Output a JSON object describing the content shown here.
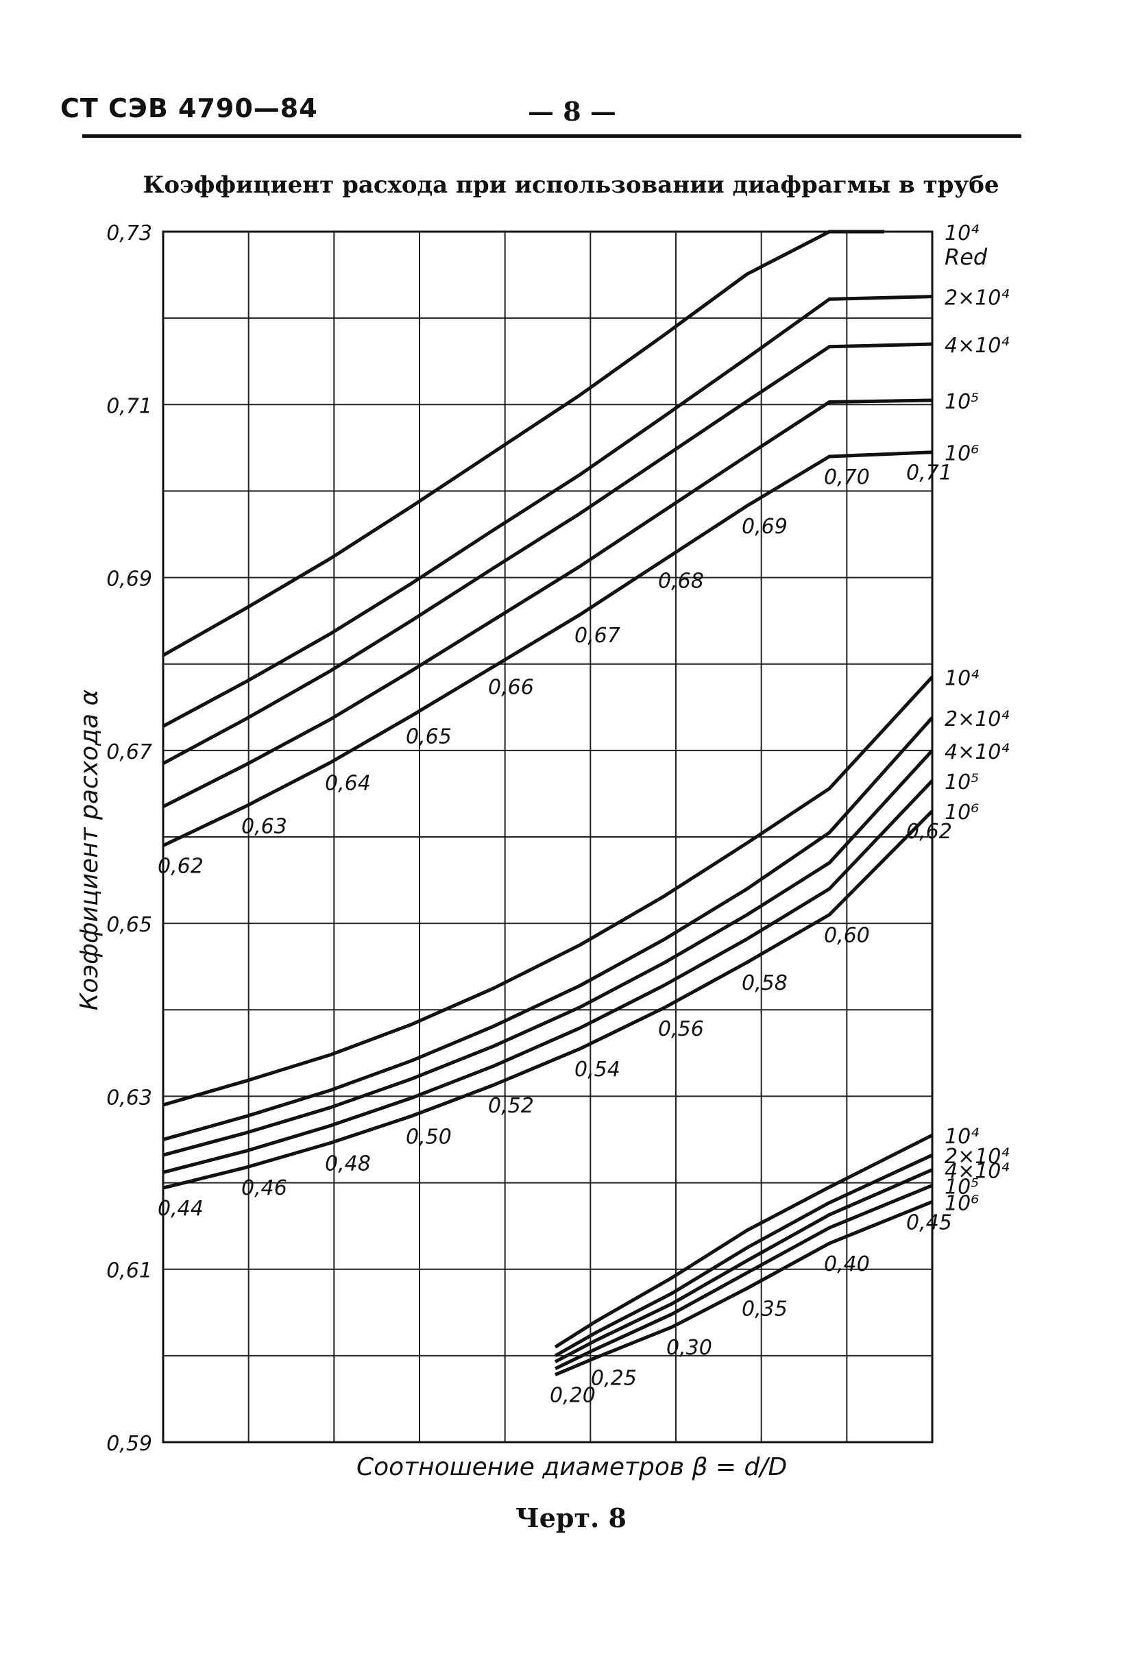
{
  "header": {
    "doc_code": "СТ СЭВ 4790—84",
    "page_number": "— 8 —"
  },
  "title": "Коэффициент расхода при использовании диафрагмы в трубе",
  "caption": "Черт. 8",
  "chart_data": {
    "type": "line",
    "title": "Коэффициент расхода при использовании диафрагмы в трубе",
    "xlabel": "Соотношение диаметров β = d/D",
    "ylabel": "Коэффициент расхода α",
    "legend_title": "Red",
    "y_tick_labels": [
      "0,73",
      "0,71",
      "0,69",
      "0,67",
      "0,65",
      "0,63",
      "0,61",
      "0,59"
    ],
    "ylim": [
      0.59,
      0.73
    ],
    "grid": true,
    "curve_endpoint_labels": [
      "10⁴",
      "2×10⁴",
      "4×10⁴",
      "10⁵",
      "10⁶"
    ],
    "panels": [
      {
        "beta_labels": [
          "0,62",
          "0,63",
          "0,64",
          "0,65",
          "0,66",
          "0,67",
          "0,68",
          "0,69",
          "0,70",
          "0,71"
        ],
        "series": [
          {
            "name": "10⁴",
            "values": [
              0.681,
              0.6865,
              0.6922,
              0.6982,
              0.7045,
              0.7111,
              0.718,
              0.7251,
              0.73,
              0.73
            ]
          },
          {
            "name": "2×10⁴",
            "values": [
              0.6728,
              0.678,
              0.6835,
              0.6893,
              0.6955,
              0.7019,
              0.7086,
              0.7154,
              0.7222,
              0.7225
            ]
          },
          {
            "name": "4×10⁴",
            "values": [
              0.6685,
              0.6737,
              0.6792,
              0.685,
              0.6911,
              0.6974,
              0.7039,
              0.7104,
              0.7167,
              0.717
            ]
          },
          {
            "name": "10⁵",
            "values": [
              0.6635,
              0.6684,
              0.6736,
              0.6792,
              0.6851,
              0.6913,
              0.6977,
              0.7041,
              0.7103,
              0.7105
            ]
          },
          {
            "name": "10⁶",
            "values": [
              0.659,
              0.6636,
              0.6686,
              0.674,
              0.6797,
              0.6857,
              0.692,
              0.6983,
              0.704,
              0.7045
            ]
          }
        ]
      },
      {
        "beta_labels": [
          "0,44",
          "0,46",
          "0,48",
          "0,50",
          "0,52",
          "0,54",
          "0,56",
          "0,58",
          "0,60",
          "0,62"
        ],
        "series": [
          {
            "name": "10⁴",
            "values": [
              0.629,
              0.6318,
              0.6348,
              0.6383,
              0.6425,
              0.6475,
              0.6531,
              0.6593,
              0.6656,
              0.6785
            ]
          },
          {
            "name": "2×10⁴",
            "values": [
              0.625,
              0.6277,
              0.6307,
              0.6341,
              0.6381,
              0.6428,
              0.6481,
              0.654,
              0.6605,
              0.6738
            ]
          },
          {
            "name": "4×10⁴",
            "values": [
              0.6232,
              0.6258,
              0.6287,
              0.632,
              0.6358,
              0.6403,
              0.6454,
              0.651,
              0.657,
              0.67
            ]
          },
          {
            "name": "10⁵",
            "values": [
              0.6212,
              0.6237,
              0.6266,
              0.6298,
              0.6335,
              0.6379,
              0.6428,
              0.6482,
              0.654,
              0.6665
            ]
          },
          {
            "name": "10⁶",
            "values": [
              0.6194,
              0.6218,
              0.6246,
              0.6277,
              0.6313,
              0.6355,
              0.6402,
              0.6455,
              0.651,
              0.663
            ]
          }
        ]
      },
      {
        "beta_labels": [
          "0,20",
          "0,25",
          "0,30",
          "0,35",
          "0,40",
          "0,45"
        ],
        "series": [
          {
            "name": "10⁴",
            "values": [
              0.601,
              0.604,
              0.609,
              0.6145,
              0.6195,
              0.6255
            ]
          },
          {
            "name": "2×10⁴",
            "values": [
              0.6,
              0.6027,
              0.6072,
              0.6125,
              0.6177,
              0.6232
            ]
          },
          {
            "name": "4×10⁴",
            "values": [
              0.5993,
              0.6018,
              0.606,
              0.611,
              0.6163,
              0.6215
            ]
          },
          {
            "name": "10⁵",
            "values": [
              0.5985,
              0.6008,
              0.6048,
              0.6096,
              0.6148,
              0.6197
            ]
          },
          {
            "name": "10⁶",
            "values": [
              0.5978,
              0.5998,
              0.6033,
              0.6078,
              0.613,
              0.6178
            ]
          }
        ]
      }
    ]
  }
}
